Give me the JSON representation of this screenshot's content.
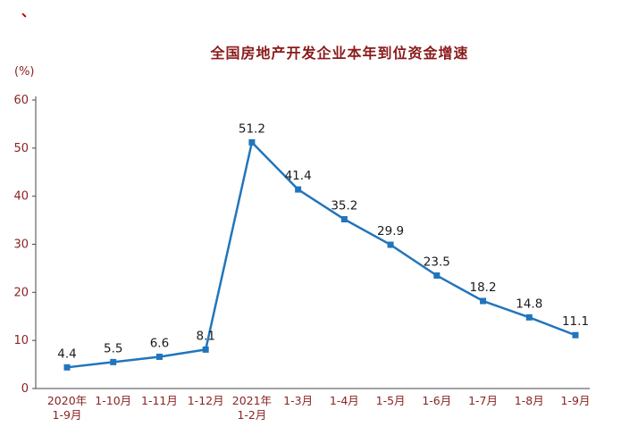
{
  "corner_mark": "、",
  "chart_data": {
    "type": "line",
    "title": "全国房地产开发企业本年到位资金增速",
    "ylabel": "(%)",
    "xlabel": "",
    "categories": [
      "2020年\n1-9月",
      "1-10月",
      "1-11月",
      "1-12月",
      "2021年\n1-2月",
      "1-3月",
      "1-4月",
      "1-5月",
      "1-6月",
      "1-7月",
      "1-8月",
      "1-9月"
    ],
    "values": [
      4.4,
      5.5,
      6.6,
      8.1,
      51.2,
      41.4,
      35.2,
      29.9,
      23.5,
      18.2,
      14.8,
      11.1
    ],
    "ylim": [
      0,
      60
    ],
    "yticks": [
      0,
      10,
      20,
      30,
      40,
      50,
      60
    ],
    "grid": false,
    "legend": "none",
    "marker": "square",
    "colors": {
      "line": "#2175BC",
      "marker": "#2175BC",
      "title": "#8B1A1A",
      "tick_label": "#8B2323",
      "value_label": "#1A1A1A",
      "axis": "#444444",
      "corner_mark": "#C00000"
    }
  }
}
